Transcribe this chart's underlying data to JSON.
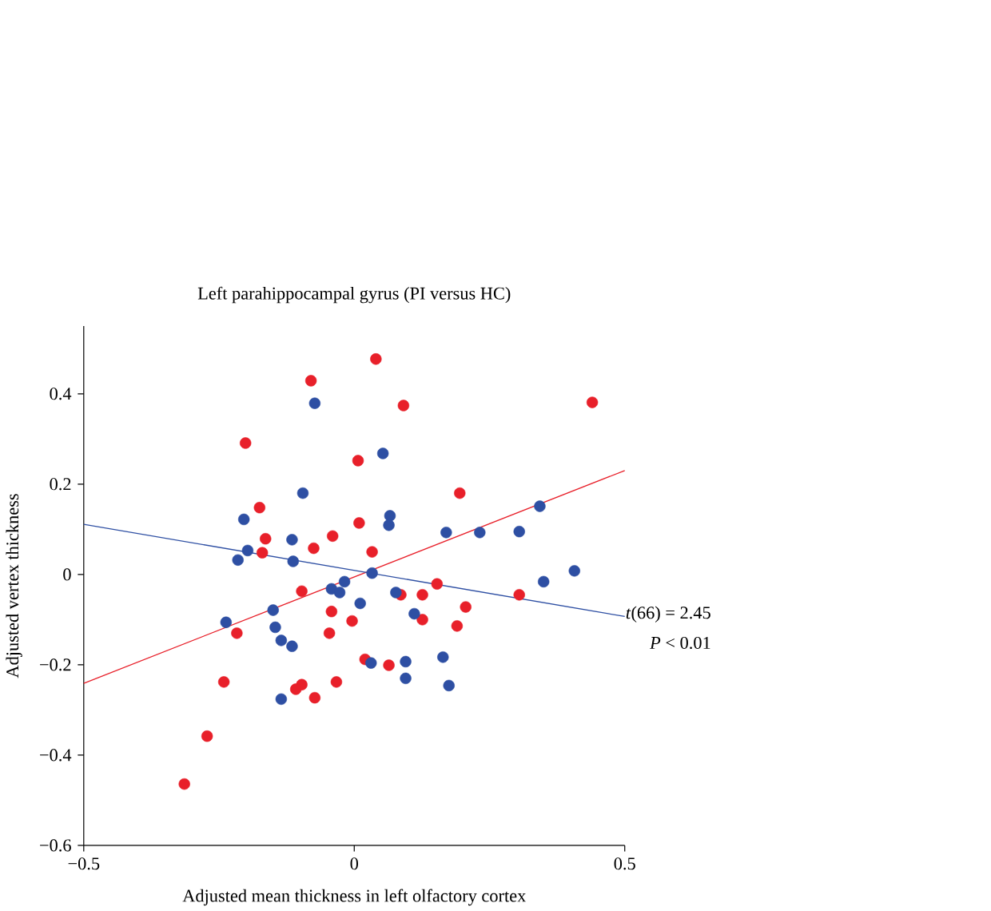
{
  "chart_data": {
    "type": "scatter",
    "title": "Left parahippocampal gyrus (PI versus HC)",
    "xlabel": "Adjusted mean thickness in left olfactory cortex",
    "ylabel": "Adjusted vertex thickness",
    "xlim": [
      -0.5,
      0.5
    ],
    "ylim": [
      -0.6,
      0.55
    ],
    "xticks": [
      {
        "value": -0.5,
        "label": "−0.5"
      },
      0,
      0.5
    ],
    "yticks": [
      {
        "value": -0.6,
        "label": "−0.6"
      },
      {
        "value": -0.4,
        "label": "−0.4"
      },
      {
        "value": -0.2,
        "label": "−0.2"
      },
      0,
      0.2,
      0.4
    ],
    "grid": false,
    "annotations": [
      "*t*(66) = 2.45",
      "*P* < 0.01"
    ],
    "series": [
      {
        "marker": "circle",
        "color": "#e8202a",
        "x": [
          0.04,
          0.091,
          0.44,
          -0.08,
          -0.201,
          0.007,
          0.195,
          -0.175,
          0.009,
          -0.164,
          -0.17,
          -0.075,
          -0.04,
          0.033,
          0.153,
          -0.097,
          -0.042,
          -0.004,
          -0.046,
          -0.217,
          -0.241,
          -0.097,
          -0.108,
          -0.073,
          -0.033,
          -0.272,
          -0.314,
          0.086,
          0.126,
          0.126,
          0.206,
          0.19,
          0.305,
          0.02,
          0.064
        ],
        "values": [
          0.477,
          0.374,
          0.381,
          0.429,
          0.291,
          0.252,
          0.18,
          0.148,
          0.114,
          0.079,
          0.048,
          0.058,
          0.085,
          0.05,
          -0.021,
          -0.037,
          -0.082,
          -0.103,
          -0.13,
          -0.13,
          -0.238,
          -0.244,
          -0.254,
          -0.273,
          -0.238,
          -0.358,
          -0.464,
          -0.045,
          -0.045,
          -0.1,
          -0.072,
          -0.114,
          -0.045,
          -0.188,
          -0.201
        ]
      },
      {
        "marker": "circle",
        "color": "#2e4fa3",
        "x": [
          -0.073,
          -0.095,
          -0.204,
          -0.115,
          -0.197,
          -0.215,
          -0.113,
          0.053,
          0.066,
          0.064,
          0.17,
          0.232,
          0.305,
          0.343,
          0.407,
          0.35,
          0.033,
          -0.018,
          -0.042,
          -0.027,
          0.011,
          -0.15,
          -0.237,
          -0.146,
          -0.135,
          -0.115,
          -0.135,
          0.077,
          0.111,
          0.031,
          0.095,
          0.095,
          0.164,
          0.175
        ],
        "values": [
          0.379,
          0.18,
          0.122,
          0.077,
          0.053,
          0.032,
          0.029,
          0.268,
          0.13,
          0.109,
          0.093,
          0.093,
          0.095,
          0.151,
          0.008,
          -0.016,
          0.003,
          -0.016,
          -0.032,
          -0.04,
          -0.064,
          -0.079,
          -0.106,
          -0.117,
          -0.146,
          -0.159,
          -0.276,
          -0.04,
          -0.087,
          -0.196,
          -0.193,
          -0.23,
          -0.183,
          -0.246
        ]
      },
      {
        "type": "line",
        "marker": "none",
        "color": "#e8202a",
        "x": [
          -0.5,
          0.5
        ],
        "values": [
          -0.241,
          0.23
        ]
      },
      {
        "type": "line",
        "marker": "none",
        "color": "#2e4fa3",
        "x": [
          -0.5,
          0.5
        ],
        "values": [
          0.111,
          -0.093
        ]
      }
    ]
  }
}
